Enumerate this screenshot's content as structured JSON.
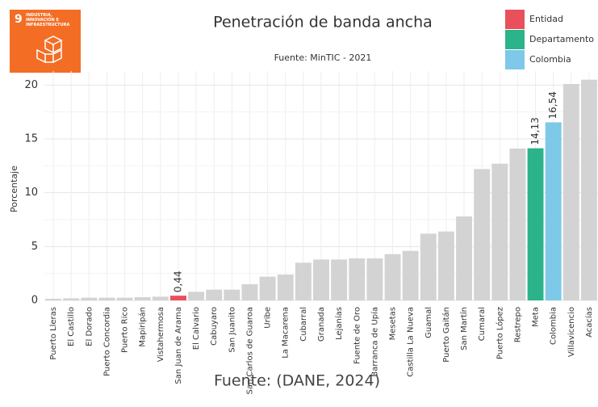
{
  "badge": {
    "number": "9",
    "text": "INDUSTRIA, INNOVACIÓN E INFRAESTRUCTURA"
  },
  "caption": "Fuente: (DANE, 2024)",
  "chart_data": {
    "type": "bar",
    "title": "Penetración de banda ancha",
    "subtitle": "Fuente: MinTIC - 2021",
    "y_label": "Porcentaje",
    "categories": [
      "Puerto Lleras",
      "El Castillo",
      "El Dorado",
      "Puerto Concordia",
      "Puerto Rico",
      "Mapiripán",
      "Vistahermosa",
      "San Juan de Arama",
      "El Calvario",
      "Cabuyaro",
      "San Juanito",
      "San Carlos de Guaroa",
      "Uribe",
      "La Macarena",
      "Cubarral",
      "Granada",
      "Lejanías",
      "Fuente de Oro",
      "Barranca de Upía",
      "Mesetas",
      "Castilla La Nueva",
      "Guamal",
      "Puerto Gaitán",
      "San Martín",
      "Cumaral",
      "Puerto López",
      "Restrepo",
      "Meta",
      "Colombia",
      "Villavicencio",
      "Acacías"
    ],
    "values": [
      0.15,
      0.2,
      0.25,
      0.25,
      0.25,
      0.3,
      0.35,
      0.44,
      0.8,
      1.0,
      1.0,
      1.5,
      2.2,
      2.4,
      3.5,
      3.8,
      3.8,
      3.9,
      3.9,
      4.3,
      4.6,
      6.2,
      6.4,
      7.8,
      12.2,
      12.7,
      14.1,
      14.13,
      16.54,
      20.1,
      20.5
    ],
    "value_labels": [
      null,
      null,
      null,
      null,
      null,
      null,
      null,
      "0,44",
      null,
      null,
      null,
      null,
      null,
      null,
      null,
      null,
      null,
      null,
      null,
      null,
      null,
      null,
      null,
      null,
      null,
      null,
      null,
      "14,13",
      "16,54",
      null,
      null
    ],
    "colors": [
      "#d3d3d3",
      "#d3d3d3",
      "#d3d3d3",
      "#d3d3d3",
      "#d3d3d3",
      "#d3d3d3",
      "#d3d3d3",
      "#e8505b",
      "#d3d3d3",
      "#d3d3d3",
      "#d3d3d3",
      "#d3d3d3",
      "#d3d3d3",
      "#d3d3d3",
      "#d3d3d3",
      "#d3d3d3",
      "#d3d3d3",
      "#d3d3d3",
      "#d3d3d3",
      "#d3d3d3",
      "#d3d3d3",
      "#d3d3d3",
      "#d3d3d3",
      "#d3d3d3",
      "#d3d3d3",
      "#d3d3d3",
      "#d3d3d3",
      "#2bb38a",
      "#7ec8e8",
      "#d3d3d3",
      "#d3d3d3"
    ],
    "legend": [
      {
        "name": "Entidad",
        "color": "#e8505b"
      },
      {
        "name": "Departamento",
        "color": "#2bb38a"
      },
      {
        "name": "Colombia",
        "color": "#7ec8e8"
      }
    ],
    "ylim": [
      0,
      21.3
    ],
    "yticks": [
      0,
      5,
      10,
      15,
      20
    ],
    "grid": true
  }
}
